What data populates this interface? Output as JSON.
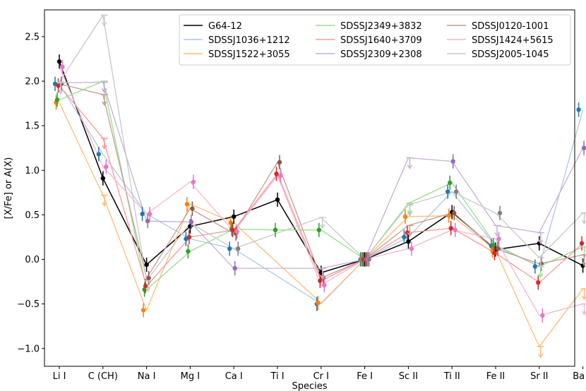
{
  "chart_data": {
    "type": "line",
    "xlabel": "Species",
    "ylabel": "[X/Fe] or A(X)",
    "ylim": [
      -1.2,
      2.8
    ],
    "yticks": [
      -1.0,
      -0.5,
      0.0,
      0.5,
      1.0,
      1.5,
      2.0,
      2.5
    ],
    "ytick_labels": [
      "−1.0",
      "−0.5",
      "0.0",
      "0.5",
      "1.0",
      "1.5",
      "2.0",
      "2.5"
    ],
    "categories": [
      "Li I",
      "C (CH)",
      "Na I",
      "Mg I",
      "Ca I",
      "Ti I",
      "Cr I",
      "Fe I",
      "Sc II",
      "Ti II",
      "Fe II",
      "Sr II",
      "Ba II"
    ],
    "legend_position": "top-right",
    "series": [
      {
        "name": "G64-12",
        "color": "#000000",
        "values": [
          2.22,
          0.91,
          -0.06,
          0.37,
          0.48,
          0.67,
          -0.15,
          0.0,
          0.2,
          0.53,
          0.11,
          0.18,
          -0.07
        ]
      },
      {
        "name": "SDSSJ1036+1212",
        "color": "#aec7e8",
        "values": [
          1.97,
          1.18,
          0.51,
          0.23,
          0.12,
          null,
          -0.5,
          0.0,
          0.25,
          0.76,
          0.15,
          -0.08,
          1.68
        ]
      },
      {
        "name": "SDSSJ1522+3055",
        "color": "#ffbb78",
        "values": [
          1.76,
          0.72,
          -0.57,
          0.62,
          0.41,
          null,
          -0.49,
          0.0,
          0.48,
          0.49,
          0.1,
          -0.98,
          -0.33
        ]
      },
      {
        "name": "SDSSJ2349+3832",
        "color": "#98df8a",
        "values": [
          1.79,
          2.0,
          -0.34,
          0.09,
          0.34,
          0.33,
          0.33,
          0.0,
          0.63,
          0.86,
          0.16,
          -0.08,
          0.14
        ]
      },
      {
        "name": "SDSSJ1640+3709",
        "color": "#ff9896",
        "values": [
          1.95,
          1.36,
          -0.3,
          0.25,
          0.33,
          0.96,
          -0.24,
          0.0,
          0.3,
          0.35,
          0.07,
          -0.26,
          0.18
        ]
      },
      {
        "name": "SDSSJ2309+2308",
        "color": "#c5b0d5",
        "values": [
          1.98,
          1.99,
          0.43,
          0.42,
          -0.1,
          null,
          -0.1,
          0.0,
          1.14,
          1.1,
          0.38,
          0.3,
          1.25
        ]
      },
      {
        "name": "SDSSJ0120-1001",
        "color": "#c49c94",
        "values": [
          1.97,
          1.85,
          -0.21,
          0.57,
          0.29,
          1.09,
          -0.21,
          0.0,
          0.38,
          0.52,
          0.12,
          -0.05,
          0.05
        ]
      },
      {
        "name": "SDSSJ1424+5615",
        "color": "#f7b6d2",
        "values": [
          2.16,
          1.04,
          0.51,
          0.87,
          0.31,
          0.94,
          -0.29,
          0.0,
          0.12,
          0.33,
          0.23,
          -0.63,
          -0.5
        ]
      },
      {
        "name": "SDSSJ2005-1045",
        "color": "#c7c7c7",
        "values": [
          1.99,
          2.74,
          -0.24,
          0.41,
          0.12,
          null,
          0.47,
          0.0,
          0.61,
          0.76,
          0.52,
          0.02,
          0.52
        ]
      }
    ],
    "markers": [
      {
        "series": "G64-12",
        "color": "#000000",
        "values": [
          2.22,
          0.91,
          -0.06,
          0.37,
          0.48,
          0.67,
          -0.15,
          0.0,
          0.2,
          0.53,
          0.11,
          0.18,
          -0.07
        ]
      },
      {
        "series": "SDSSJ1036+1212",
        "color": "#1f77b4",
        "values": [
          1.97,
          1.18,
          0.51,
          0.23,
          0.12,
          null,
          -0.5,
          0.0,
          0.25,
          0.76,
          0.15,
          -0.08,
          1.68
        ]
      },
      {
        "series": "SDSSJ1522+3055",
        "color": "#ff7f0e",
        "values": [
          1.76,
          null,
          -0.57,
          0.62,
          0.41,
          null,
          -0.49,
          0.0,
          0.48,
          0.49,
          0.1,
          null,
          null
        ]
      },
      {
        "series": "SDSSJ2349+3832",
        "color": "#2ca02c",
        "values": [
          1.79,
          null,
          -0.34,
          0.09,
          0.34,
          0.33,
          0.33,
          0.0,
          null,
          0.86,
          0.16,
          null,
          null
        ]
      },
      {
        "series": "SDSSJ1640+3709",
        "color": "#d62728",
        "values": [
          1.95,
          null,
          -0.3,
          0.25,
          0.33,
          0.96,
          -0.24,
          0.0,
          0.3,
          0.35,
          0.07,
          -0.26,
          0.18
        ]
      },
      {
        "series": "SDSSJ2309+2308",
        "color": "#9467bd",
        "values": [
          null,
          null,
          0.43,
          0.42,
          -0.1,
          null,
          null,
          0.0,
          null,
          1.1,
          null,
          null,
          1.25
        ]
      },
      {
        "series": "SDSSJ0120-1001",
        "color": "#8c564b",
        "values": [
          1.97,
          null,
          -0.21,
          0.57,
          0.29,
          1.09,
          -0.21,
          0.0,
          null,
          0.52,
          0.12,
          -0.05,
          null
        ]
      },
      {
        "series": "SDSSJ1424+5615",
        "color": "#e377c2",
        "values": [
          2.16,
          1.04,
          0.51,
          0.87,
          0.31,
          0.94,
          -0.29,
          0.0,
          0.12,
          0.33,
          0.23,
          -0.63,
          null
        ]
      },
      {
        "series": "SDSSJ2005-1045",
        "color": "#7f7f7f",
        "values": [
          null,
          null,
          null,
          null,
          0.12,
          null,
          null,
          0.0,
          null,
          0.76,
          0.52,
          null,
          null
        ]
      }
    ],
    "upper_limits": [
      {
        "series": "SDSSJ1522+3055",
        "color": "#ffbb78",
        "cat": "C (CH)",
        "value": 0.72
      },
      {
        "series": "SDSSJ1522+3055",
        "color": "#ffbb78",
        "cat": "Sr II",
        "value": -0.98
      },
      {
        "series": "SDSSJ1522+3055",
        "color": "#ffbb78",
        "cat": "Ba II",
        "value": -0.33
      },
      {
        "series": "SDSSJ2349+3832",
        "color": "#98df8a",
        "cat": "C (CH)",
        "value": 2.0
      },
      {
        "series": "SDSSJ2349+3832",
        "color": "#98df8a",
        "cat": "Sc II",
        "value": 0.63
      },
      {
        "series": "SDSSJ2349+3832",
        "color": "#98df8a",
        "cat": "Sr II",
        "value": -0.08
      },
      {
        "series": "SDSSJ2349+3832",
        "color": "#98df8a",
        "cat": "Ba II",
        "value": 0.14
      },
      {
        "series": "SDSSJ1640+3709",
        "color": "#ff9896",
        "cat": "C (CH)",
        "value": 1.36
      },
      {
        "series": "SDSSJ2309+2308",
        "color": "#c5b0d5",
        "cat": "Li I",
        "value": 1.98
      },
      {
        "series": "SDSSJ2309+2308",
        "color": "#c5b0d5",
        "cat": "C (CH)",
        "value": 1.99
      },
      {
        "series": "SDSSJ2309+2308",
        "color": "#c5b0d5",
        "cat": "Cr I",
        "value": -0.1
      },
      {
        "series": "SDSSJ2309+2308",
        "color": "#c5b0d5",
        "cat": "Sc II",
        "value": 1.14
      },
      {
        "series": "SDSSJ2309+2308",
        "color": "#c5b0d5",
        "cat": "Fe II",
        "value": 0.38
      },
      {
        "series": "SDSSJ2309+2308",
        "color": "#c5b0d5",
        "cat": "Sr II",
        "value": 0.3
      },
      {
        "series": "SDSSJ0120-1001",
        "color": "#c49c94",
        "cat": "C (CH)",
        "value": 1.85
      },
      {
        "series": "SDSSJ0120-1001",
        "color": "#c49c94",
        "cat": "Sc II",
        "value": 0.38
      },
      {
        "series": "SDSSJ0120-1001",
        "color": "#c49c94",
        "cat": "Ba II",
        "value": 0.05
      },
      {
        "series": "SDSSJ1424+5615",
        "color": "#f7b6d2",
        "cat": "Ba II",
        "value": -0.5
      },
      {
        "series": "SDSSJ2005-1045",
        "color": "#c7c7c7",
        "cat": "Li I",
        "value": 1.99
      },
      {
        "series": "SDSSJ2005-1045",
        "color": "#c7c7c7",
        "cat": "C (CH)",
        "value": 2.74
      },
      {
        "series": "SDSSJ2005-1045",
        "color": "#c7c7c7",
        "cat": "Na I",
        "value": -0.24
      },
      {
        "series": "SDSSJ2005-1045",
        "color": "#c7c7c7",
        "cat": "Cr I",
        "value": 0.47
      },
      {
        "series": "SDSSJ2005-1045",
        "color": "#c7c7c7",
        "cat": "Sc II",
        "value": 0.61
      },
      {
        "series": "SDSSJ2005-1045",
        "color": "#c7c7c7",
        "cat": "Sr II",
        "value": 0.02
      },
      {
        "series": "SDSSJ2005-1045",
        "color": "#c7c7c7",
        "cat": "Ba II",
        "value": 0.52
      }
    ]
  }
}
